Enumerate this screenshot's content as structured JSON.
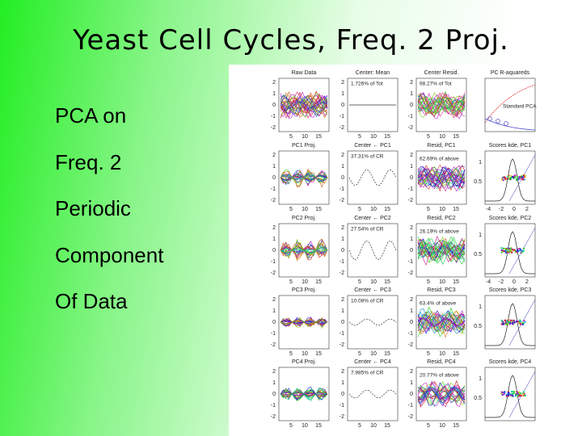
{
  "title": "Yeast Cell Cycles, Freq. 2 Proj.",
  "bullets": [
    "PCA on",
    "Freq. 2",
    "Periodic",
    "Component",
    "Of Data"
  ],
  "figure": {
    "rows": [
      {
        "titles": [
          "Raw Data",
          "Center: Mean",
          "Center Resid.",
          "PC R-aquareds"
        ],
        "annotations": [
          "1.726% of Tot",
          "98.27% of Tot",
          "Standard PCA"
        ]
      },
      {
        "titles": [
          "PC1 Proj.",
          "Center ← PC1",
          "Resid, PC1",
          "Scores kde, PC1"
        ],
        "annotations": [
          "37.31% of CR",
          "62.69% of above"
        ]
      },
      {
        "titles": [
          "PC2 Proj.",
          "Center ← PC2",
          "Resid, PC2",
          "Scores kde, PC2"
        ],
        "annotations": [
          "27.54% of CR",
          "26.19% of above"
        ]
      },
      {
        "titles": [
          "PC3 Proj.",
          "Center ← PC3",
          "Resid, PC3",
          "Scores kde, PC3"
        ],
        "annotations": [
          "10.08% of CR",
          "63.4% of above"
        ]
      },
      {
        "titles": [
          "PC4 Proj.",
          "Center ← PC4",
          "Resid, PC4",
          "Scores kde, PC4"
        ],
        "annotations": [
          "7.985% of CR",
          "20.77% of above"
        ]
      }
    ],
    "y_ticks": [
      "2",
      "1",
      "0",
      "-1",
      "-2"
    ],
    "x_ticks": [
      "5",
      "10",
      "15"
    ],
    "kde_y_ticks": [
      "1",
      "0.5"
    ],
    "kde_x_ticks": [
      "-4",
      "-2",
      "0",
      "2"
    ]
  }
}
